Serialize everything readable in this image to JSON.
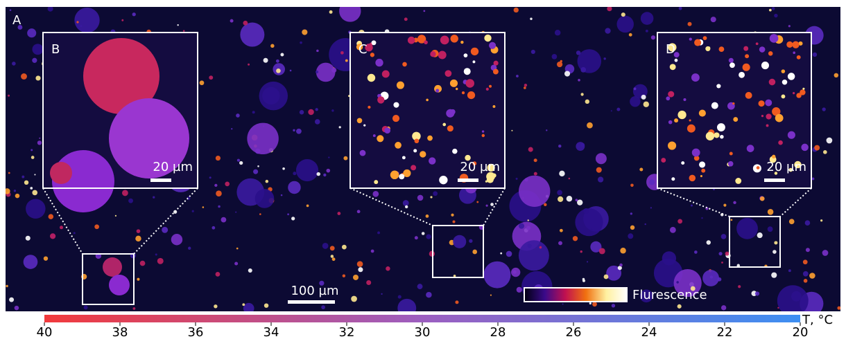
{
  "panels": {
    "main": "A",
    "inset_b": "B",
    "inset_c": "C",
    "inset_d": "D"
  },
  "scale_bars": {
    "inset_b": "20 µm",
    "inset_c": "20 µm",
    "inset_d": "20 µm",
    "main": "100 µm"
  },
  "fluorescence_legend": {
    "label": "Flurescence",
    "colors": [
      "#000010",
      "#3a0a8a",
      "#c01050",
      "#f07010",
      "#fff0a0",
      "#ffffff"
    ]
  },
  "colorbar": {
    "label": "T, °C",
    "lim": [
      40,
      20
    ],
    "ticks": [
      40,
      38,
      36,
      34,
      32,
      30,
      28,
      26,
      24,
      22,
      20
    ],
    "colors": [
      "#f23a3c",
      "#9c5ec0",
      "#3d8ff2"
    ]
  }
}
